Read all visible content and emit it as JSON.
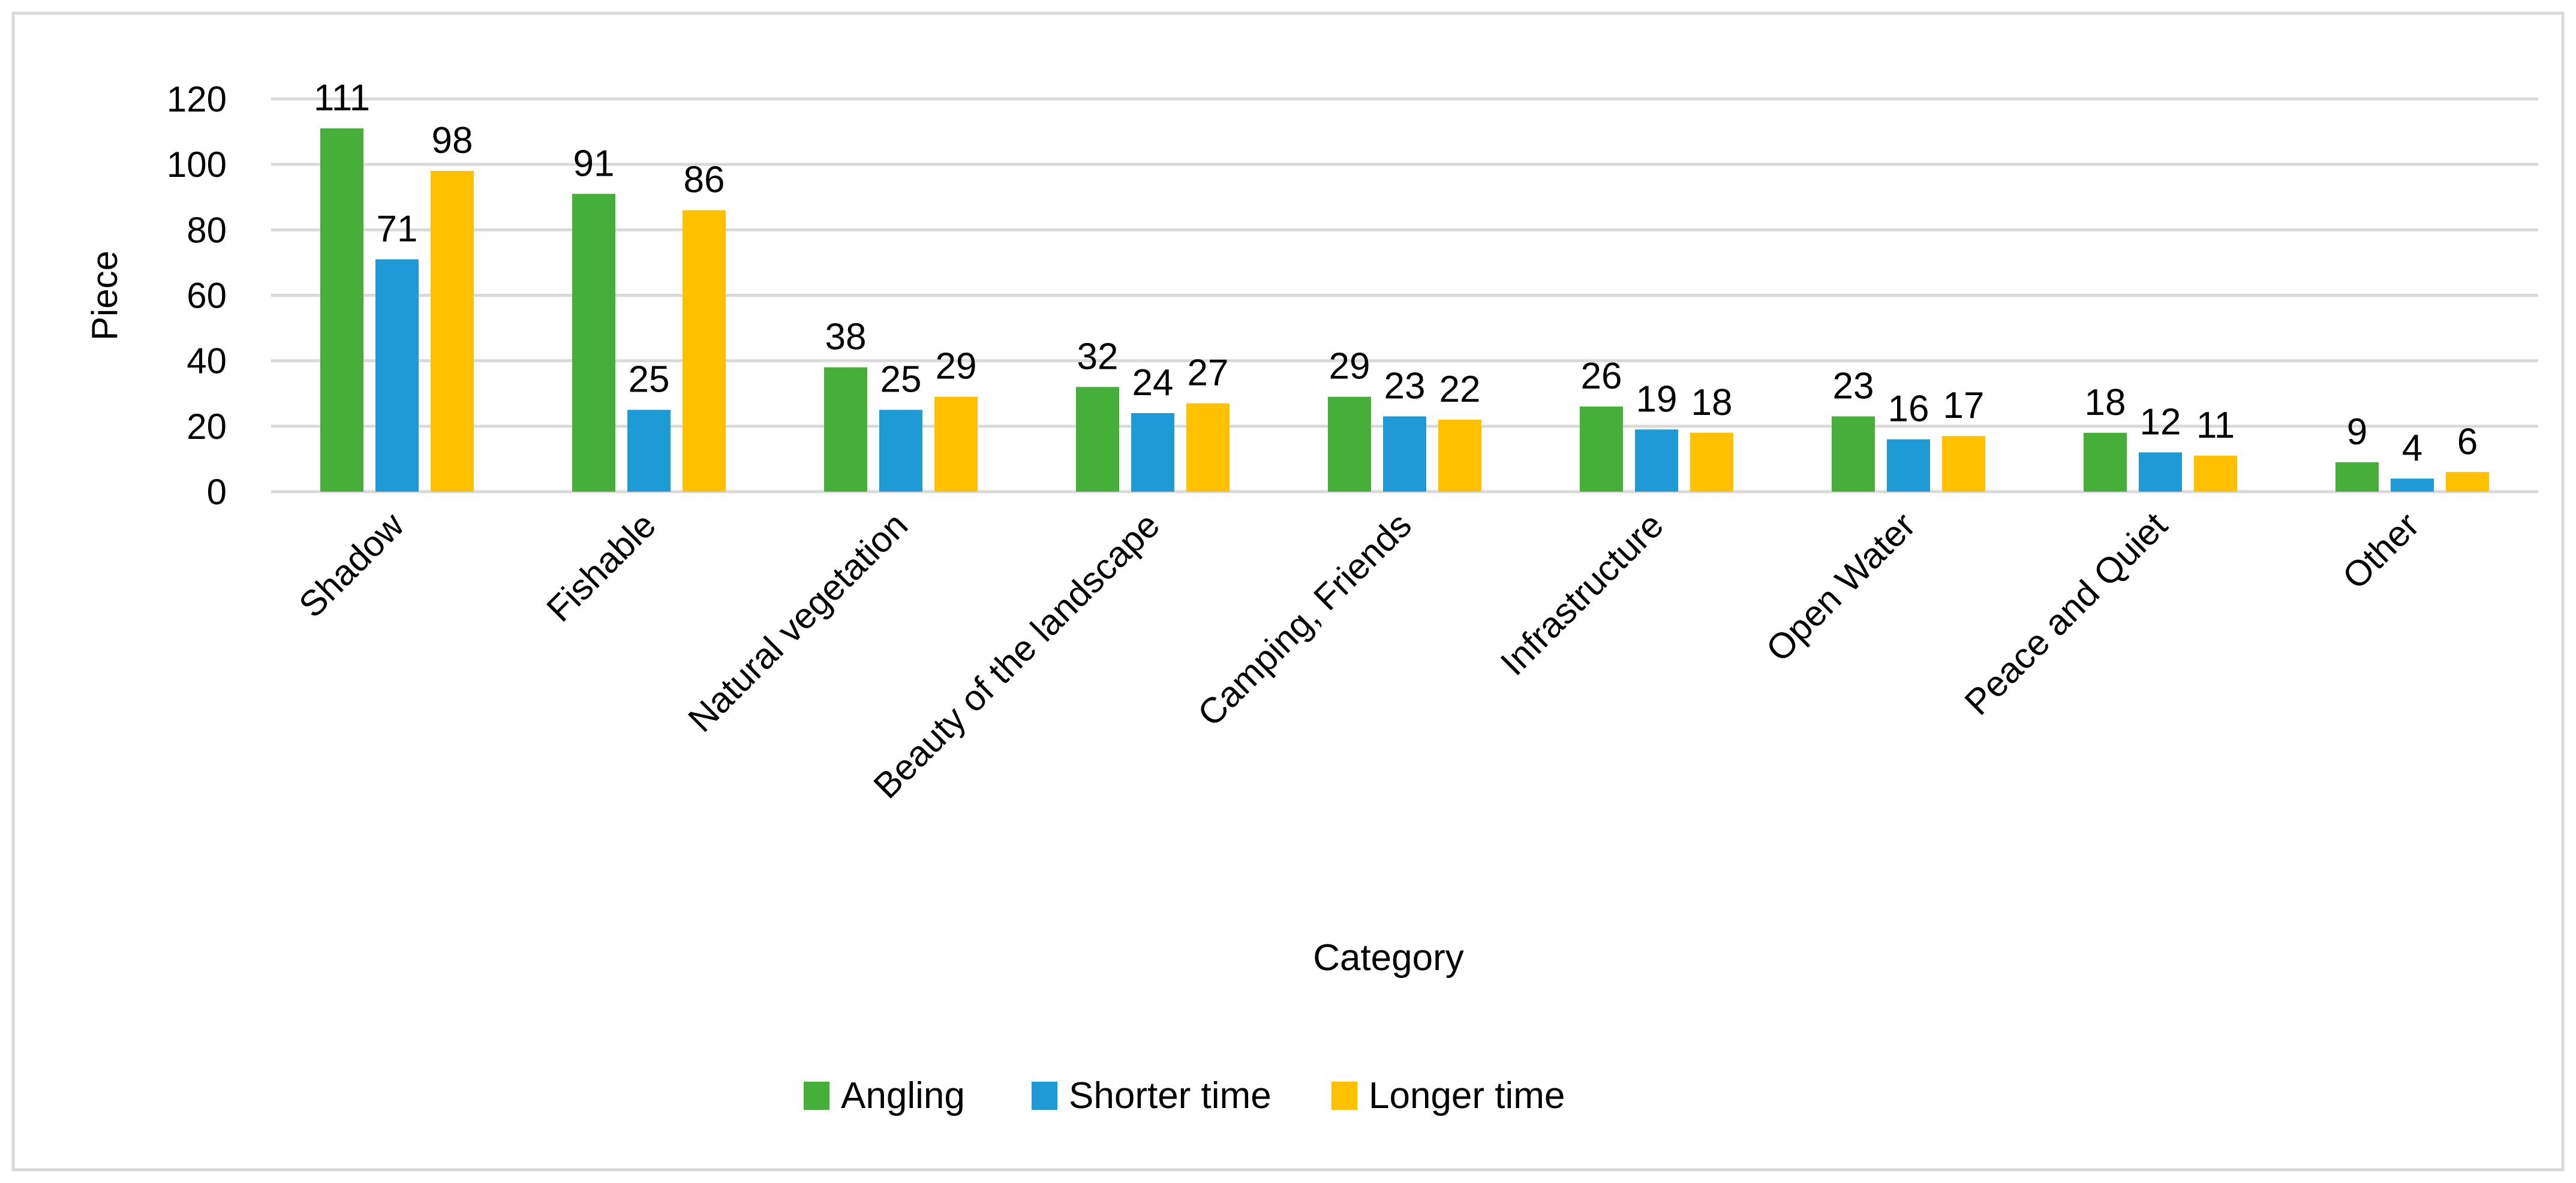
{
  "chart_data": {
    "type": "bar",
    "title": "",
    "xlabel": "Category",
    "ylabel": "Piece",
    "ylim": [
      0,
      120
    ],
    "yticks": [
      0,
      20,
      40,
      60,
      80,
      100,
      120
    ],
    "grid": true,
    "legend_position": "bottom",
    "categories": [
      "Shadow",
      "Fishable",
      "Natural vegetation",
      "Beauty of the landscape",
      "Camping, Friends",
      "Infrastructure",
      "Open Water",
      "Peace and Quiet",
      "Other"
    ],
    "series": [
      {
        "name": "Angling",
        "color": "#46AF3A",
        "values": [
          111,
          91,
          38,
          32,
          29,
          26,
          23,
          18,
          9
        ]
      },
      {
        "name": "Shorter time",
        "color": "#1E9BD7",
        "values": [
          71,
          25,
          25,
          24,
          23,
          19,
          16,
          12,
          4
        ]
      },
      {
        "name": "Longer time",
        "color": "#FFC000",
        "values": [
          98,
          86,
          29,
          27,
          22,
          18,
          17,
          11,
          6
        ]
      }
    ],
    "data_labels": true
  }
}
